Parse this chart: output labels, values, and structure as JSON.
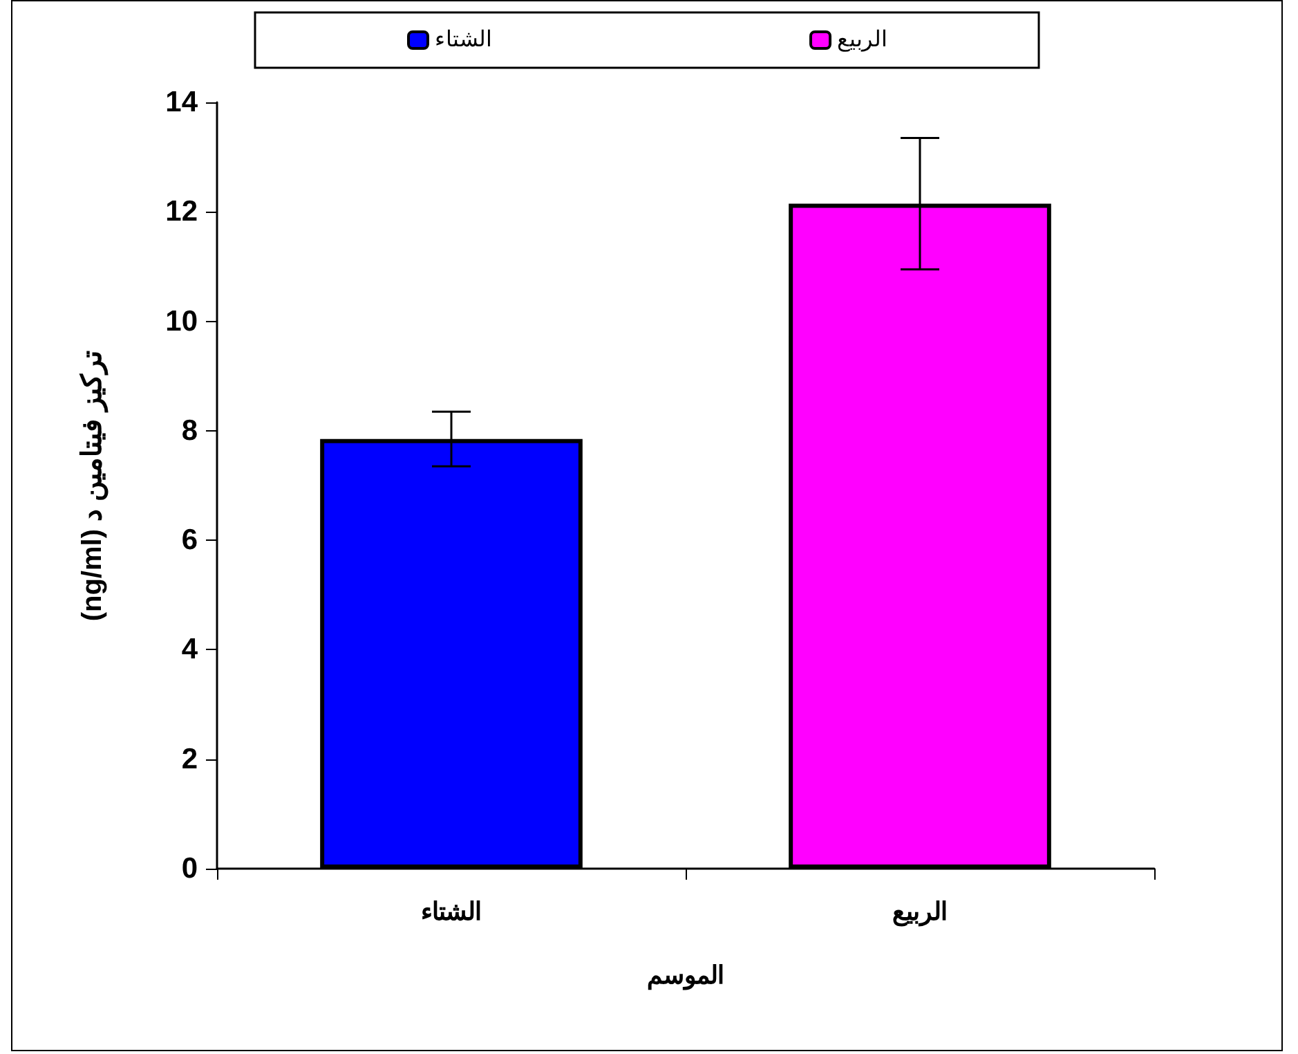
{
  "chart_data": {
    "type": "bar",
    "xlabel": "الموسم",
    "ylabel": "تركيز فيتامين د (ng/ml)",
    "categories": [
      "الشتاء",
      "الربيع"
    ],
    "series": [
      {
        "name": "الشتاء",
        "color": "#0000ff",
        "values": [
          7.85,
          null
        ],
        "errors": [
          0.5,
          null
        ]
      },
      {
        "name": "الربيع",
        "color": "#ff00ff",
        "values": [
          null,
          12.15
        ],
        "errors": [
          null,
          1.2
        ]
      }
    ],
    "ylim": [
      0,
      14
    ],
    "yticks": [
      0,
      2,
      4,
      6,
      8,
      10,
      12,
      14
    ],
    "grid": false,
    "legend": "top"
  }
}
